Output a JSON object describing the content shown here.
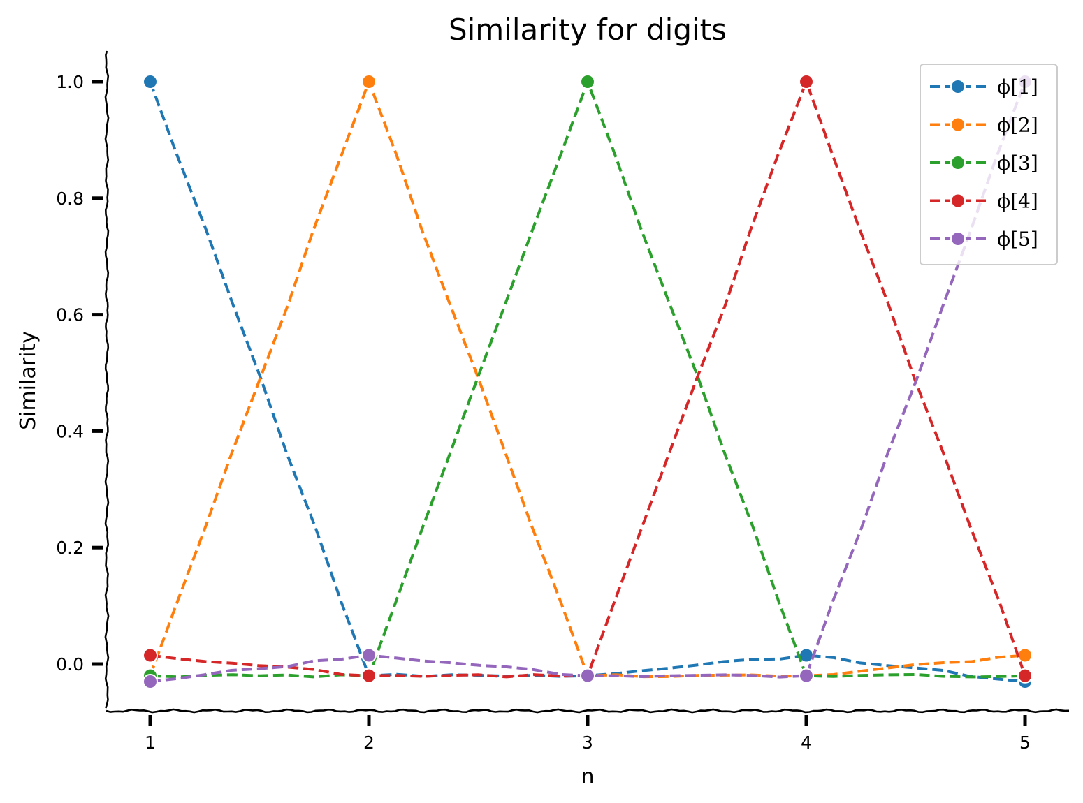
{
  "chart_data": {
    "type": "line",
    "title": "Similarity for digits",
    "xlabel": "n",
    "ylabel": "Similarity",
    "x": [
      1,
      2,
      3,
      4,
      5
    ],
    "xticks": [
      "1",
      "2",
      "3",
      "4",
      "5"
    ],
    "yticks": [
      "0.0",
      "0.2",
      "0.4",
      "0.6",
      "0.8",
      "1.0"
    ],
    "xlim": [
      0.8,
      5.2
    ],
    "ylim": [
      -0.075,
      1.05
    ],
    "grid": false,
    "legend_position": "top-right",
    "line_style": "dashed",
    "marker": "circle",
    "series": [
      {
        "name": "ϕ[1]",
        "color": "#1f77b4",
        "values": [
          1.0,
          -0.02,
          -0.02,
          0.015,
          -0.03
        ]
      },
      {
        "name": "ϕ[2]",
        "color": "#ff7f0e",
        "values": [
          -0.02,
          1.0,
          -0.02,
          -0.02,
          0.015
        ]
      },
      {
        "name": "ϕ[3]",
        "color": "#2ca02c",
        "values": [
          -0.02,
          -0.02,
          1.0,
          -0.02,
          -0.02
        ]
      },
      {
        "name": "ϕ[4]",
        "color": "#d62728",
        "values": [
          0.015,
          -0.02,
          -0.02,
          1.0,
          -0.02
        ]
      },
      {
        "name": "ϕ[5]",
        "color": "#9467bd",
        "values": [
          -0.03,
          0.015,
          -0.02,
          -0.02,
          1.0
        ]
      }
    ]
  }
}
